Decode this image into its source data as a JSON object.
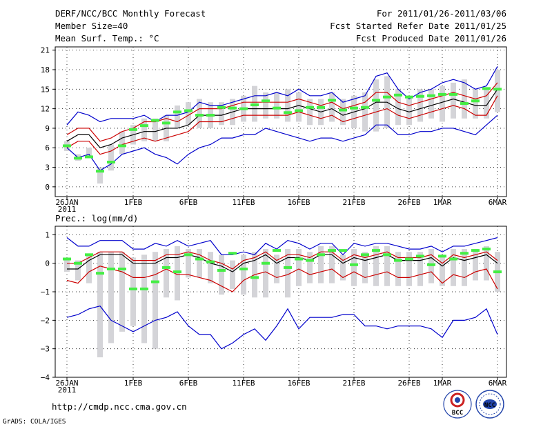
{
  "header": {
    "title": "DERF/NCC/BCC Monthly Forecast",
    "member_size": "Member Size=40",
    "variable_temp": "Mean Surf. Temp.: °C",
    "period": "For 2011/01/26-2011/03/06",
    "started": "Fcst Started Refer Date 2011/01/25",
    "produced": "Fcst Produced Date 2011/01/26"
  },
  "variable_prec": "Prec.: log(mm/d)",
  "footer": {
    "url": "http://cmdp.ncc.cma.gov.cn",
    "credit": "GrADS: COLA/IGES",
    "logo_bcc": "BCC",
    "logo_ncc": "NCC"
  },
  "colors": {
    "blue": "#0000cc",
    "red": "#cc0000",
    "green": "#44ee44",
    "box": "#d4d4d8",
    "mean": "#000000"
  },
  "chart_data": [
    {
      "type": "line",
      "title": "Mean Surf. Temp.: °C",
      "x_labels": [
        "26JAN",
        "1FEB",
        "6FEB",
        "11FEB",
        "16FEB",
        "21FEB",
        "26FEB",
        "1MAR",
        "6MAR"
      ],
      "x_sublabel": "2011",
      "label_day_index": [
        0,
        6,
        11,
        16,
        21,
        26,
        31,
        34,
        39
      ],
      "y_ticks": [
        "0",
        "3",
        "6",
        "9",
        "12",
        "15",
        "18",
        "21"
      ],
      "ylim": [
        -1.5,
        21.5
      ],
      "days": 40,
      "series": [
        {
          "name": "max",
          "color": "blue",
          "values": [
            9.5,
            11.5,
            11.0,
            10.0,
            10.5,
            10.5,
            10.5,
            11.0,
            10.0,
            11.0,
            11.0,
            11.5,
            13.0,
            12.5,
            12.5,
            13.0,
            13.5,
            14.0,
            14.0,
            14.5,
            14.0,
            15.0,
            14.0,
            14.0,
            14.5,
            13.0,
            13.5,
            14.0,
            17.0,
            17.5,
            15.0,
            13.5,
            14.5,
            15.0,
            16.0,
            16.5,
            16.0,
            15.0,
            15.5,
            18.5
          ]
        },
        {
          "name": "upper",
          "color": "red",
          "values": [
            8.0,
            9.0,
            9.0,
            7.0,
            7.5,
            8.5,
            9.0,
            10.0,
            10.0,
            10.5,
            10.0,
            11.0,
            12.0,
            12.0,
            12.0,
            12.5,
            13.0,
            13.0,
            13.0,
            13.0,
            13.0,
            13.5,
            13.0,
            12.5,
            13.0,
            12.0,
            12.5,
            13.0,
            14.5,
            14.5,
            13.0,
            12.5,
            13.0,
            13.5,
            14.0,
            14.5,
            14.0,
            13.5,
            14.0,
            16.0
          ]
        },
        {
          "name": "mean",
          "color": "mean",
          "values": [
            7.0,
            8.0,
            8.0,
            6.0,
            6.5,
            7.5,
            8.0,
            8.5,
            8.5,
            9.0,
            9.0,
            9.5,
            11.0,
            11.0,
            11.0,
            11.5,
            12.0,
            12.0,
            12.0,
            12.0,
            12.0,
            12.5,
            12.0,
            11.5,
            12.0,
            11.0,
            11.5,
            12.0,
            13.0,
            13.0,
            12.0,
            11.5,
            12.0,
            12.5,
            13.0,
            13.5,
            13.0,
            12.5,
            12.5,
            15.0
          ]
        },
        {
          "name": "lower",
          "color": "red",
          "values": [
            6.0,
            7.0,
            7.0,
            5.0,
            5.5,
            6.5,
            7.0,
            7.5,
            7.0,
            7.5,
            8.0,
            8.5,
            10.0,
            10.0,
            10.0,
            10.5,
            11.0,
            11.0,
            11.0,
            11.0,
            11.0,
            11.5,
            11.0,
            10.5,
            11.0,
            10.0,
            10.5,
            11.0,
            11.5,
            12.0,
            11.0,
            10.5,
            11.0,
            11.5,
            12.0,
            12.5,
            12.0,
            11.0,
            11.0,
            14.0
          ]
        },
        {
          "name": "min",
          "color": "blue",
          "values": [
            6.0,
            4.5,
            5.0,
            2.5,
            3.5,
            5.0,
            5.5,
            6.0,
            5.0,
            4.5,
            3.5,
            5.0,
            6.0,
            6.5,
            7.5,
            7.5,
            8.0,
            8.0,
            9.0,
            8.5,
            8.0,
            7.5,
            7.0,
            7.5,
            7.5,
            7.0,
            7.5,
            8.0,
            9.5,
            9.5,
            8.0,
            8.0,
            8.5,
            8.5,
            9.0,
            9.0,
            8.5,
            8.0,
            9.5,
            11.0
          ]
        }
      ],
      "boxes_low": [
        5.5,
        4.0,
        4.5,
        0.5,
        2.5,
        5.0,
        6.5,
        7.0,
        7.0,
        7.0,
        9.0,
        9.5,
        9.0,
        9.0,
        9.5,
        9.5,
        10.0,
        10.0,
        10.5,
        10.5,
        10.0,
        10.0,
        9.5,
        9.5,
        10.0,
        9.5,
        9.0,
        8.5,
        8.5,
        9.0,
        9.5,
        9.5,
        10.0,
        10.5,
        10.0,
        10.5,
        10.5,
        10.5,
        10.5,
        11.5
      ],
      "boxes_high": [
        7.0,
        5.0,
        6.0,
        3.0,
        6.5,
        8.5,
        9.5,
        10.5,
        10.5,
        11.0,
        12.5,
        13.0,
        13.5,
        13.0,
        13.0,
        13.5,
        14.0,
        15.5,
        14.5,
        14.5,
        15.0,
        14.5,
        13.5,
        13.5,
        14.5,
        13.5,
        14.0,
        14.5,
        16.5,
        17.0,
        15.0,
        14.0,
        15.0,
        15.0,
        15.5,
        16.0,
        16.5,
        15.0,
        15.0,
        18.0
      ],
      "observed": [
        6.3,
        4.4,
        4.6,
        2.4,
        3.8,
        6.3,
        8.8,
        9.4,
        10.2,
        9.8,
        11.5,
        11.7,
        11.0,
        11.0,
        12.2,
        12.1,
        12.0,
        12.6,
        13.2,
        12.1,
        11.4,
        11.7,
        12.2,
        12.2,
        13.3,
        11.8,
        12.1,
        12.2,
        13.3,
        13.8,
        14.1,
        13.8,
        13.9,
        14.0,
        14.2,
        14.2,
        12.8,
        13.2,
        15.1,
        15.0
      ]
    },
    {
      "type": "line",
      "title": "Prec.: log(mm/d)",
      "x_labels": [
        "26JAN",
        "1FEB",
        "6FEB",
        "11FEB",
        "16FEB",
        "21FEB",
        "26FEB",
        "1MAR",
        "6MAR"
      ],
      "x_sublabel": "2011",
      "label_day_index": [
        0,
        6,
        11,
        16,
        21,
        26,
        31,
        34,
        39
      ],
      "y_ticks": [
        "1",
        "0",
        "−1",
        "−2",
        "−3",
        "−4"
      ],
      "y_tick_values": [
        1,
        0,
        -1,
        -2,
        -3,
        -4
      ],
      "ylim": [
        -4,
        1.3
      ],
      "days": 40,
      "series": [
        {
          "name": "max",
          "color": "blue",
          "values": [
            0.9,
            0.6,
            0.6,
            0.8,
            0.8,
            0.8,
            0.5,
            0.5,
            0.7,
            0.6,
            0.8,
            0.6,
            0.7,
            0.8,
            0.3,
            0.3,
            0.4,
            0.3,
            0.7,
            0.5,
            0.8,
            0.7,
            0.5,
            0.7,
            0.7,
            0.3,
            0.7,
            0.6,
            0.7,
            0.7,
            0.6,
            0.5,
            0.5,
            0.6,
            0.4,
            0.6,
            0.6,
            0.7,
            0.8,
            0.9
          ]
        },
        {
          "name": "upper",
          "color": "red",
          "values": [
            0.0,
            0.0,
            0.2,
            0.4,
            0.4,
            0.4,
            0.1,
            0.1,
            0.1,
            0.3,
            0.3,
            0.4,
            0.3,
            0.1,
            0.0,
            -0.2,
            0.1,
            0.2,
            0.4,
            0.1,
            0.3,
            0.3,
            0.2,
            0.4,
            0.4,
            0.1,
            0.3,
            0.2,
            0.3,
            0.4,
            0.2,
            0.2,
            0.2,
            0.3,
            0.0,
            0.3,
            0.2,
            0.3,
            0.4,
            0.1
          ]
        },
        {
          "name": "mean",
          "color": "mean",
          "values": [
            -0.2,
            -0.2,
            0.1,
            0.3,
            0.3,
            0.3,
            0.0,
            0.0,
            0.0,
            0.2,
            0.2,
            0.3,
            0.2,
            0.0,
            -0.1,
            -0.3,
            0.0,
            0.1,
            0.3,
            0.0,
            0.2,
            0.2,
            0.1,
            0.3,
            0.3,
            0.0,
            0.2,
            0.1,
            0.2,
            0.3,
            0.1,
            0.1,
            0.1,
            0.2,
            -0.1,
            0.2,
            0.1,
            0.2,
            0.3,
            0.0
          ]
        },
        {
          "name": "lower",
          "color": "red",
          "values": [
            -0.6,
            -0.7,
            -0.3,
            -0.1,
            -0.2,
            -0.3,
            -0.5,
            -0.5,
            -0.4,
            -0.2,
            -0.4,
            -0.4,
            -0.5,
            -0.6,
            -0.8,
            -1.0,
            -0.6,
            -0.4,
            -0.3,
            -0.5,
            -0.4,
            -0.2,
            -0.4,
            -0.3,
            -0.2,
            -0.5,
            -0.3,
            -0.5,
            -0.4,
            -0.3,
            -0.5,
            -0.5,
            -0.4,
            -0.3,
            -0.7,
            -0.4,
            -0.5,
            -0.3,
            -0.2,
            -0.9
          ]
        },
        {
          "name": "min",
          "color": "blue",
          "values": [
            -1.9,
            -1.8,
            -1.6,
            -1.5,
            -2.0,
            -2.2,
            -2.4,
            -2.2,
            -2.0,
            -1.9,
            -1.7,
            -2.2,
            -2.5,
            -2.5,
            -3.0,
            -2.8,
            -2.5,
            -2.3,
            -2.7,
            -2.2,
            -1.6,
            -2.3,
            -1.9,
            -1.9,
            -1.9,
            -1.8,
            -1.8,
            -2.2,
            -2.2,
            -2.3,
            -2.2,
            -2.2,
            -2.2,
            -2.3,
            -2.6,
            -2.0,
            -2.0,
            -1.9,
            -1.6,
            -2.5
          ]
        },
        {
          "name": "observed",
          "color": "green",
          "values": [
            0.15,
            0.0,
            0.3,
            -0.35,
            -0.2,
            -0.2,
            -0.9,
            -0.9,
            -0.65,
            -0.15,
            -0.3,
            0.3,
            0.15,
            0.05,
            -0.25,
            0.35,
            -0.2,
            -0.5,
            0.0,
            0.45,
            -0.15,
            0.15,
            0.1,
            0.3,
            0.45,
            0.45,
            -0.05,
            0.3,
            0.45,
            0.3,
            0.1,
            0.15,
            0.25,
            -0.05,
            0.25,
            0.15,
            0.35,
            0.45,
            0.5,
            -0.3
          ]
        }
      ],
      "boxes_low": [
        -0.3,
        -0.6,
        -0.7,
        -3.3,
        -2.8,
        -2.4,
        -2.2,
        -2.8,
        -3.0,
        -1.2,
        -1.3,
        -0.5,
        -0.5,
        -0.7,
        -1.1,
        -0.9,
        -1.1,
        -1.2,
        -1.2,
        -0.7,
        -1.2,
        -0.8,
        -0.7,
        -0.7,
        -0.7,
        -0.6,
        -0.8,
        -0.7,
        -0.8,
        -0.8,
        -0.8,
        -0.8,
        -0.8,
        -0.7,
        -0.8,
        -0.8,
        -0.8,
        -0.6,
        -0.6,
        -1.0
      ],
      "boxes_high": [
        0.2,
        0.1,
        0.3,
        0.4,
        0.4,
        0.4,
        0.2,
        0.3,
        0.4,
        0.5,
        0.6,
        0.5,
        0.5,
        0.4,
        0.3,
        0.1,
        0.3,
        0.4,
        0.5,
        0.3,
        0.5,
        0.5,
        0.4,
        0.6,
        0.6,
        0.3,
        0.5,
        0.4,
        0.6,
        0.6,
        0.4,
        0.4,
        0.4,
        0.5,
        0.3,
        0.5,
        0.5,
        0.5,
        0.6,
        0.4
      ]
    }
  ]
}
